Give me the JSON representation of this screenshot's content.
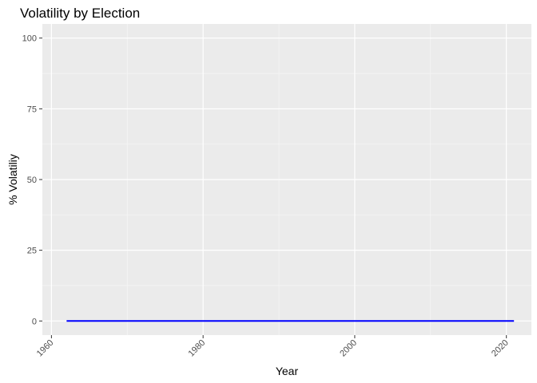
{
  "chart_data": {
    "type": "line",
    "title": "Volatility by Election",
    "xlabel": "Year",
    "ylabel": "% Volatiliy",
    "xlim": [
      1958.8,
      2023.3
    ],
    "ylim": [
      -5,
      105
    ],
    "x_ticks": [
      1960,
      1980,
      2000,
      2020
    ],
    "x_tick_labels": [
      "1960",
      "1980",
      "2000",
      "2020"
    ],
    "y_ticks": [
      0,
      25,
      50,
      75,
      100
    ],
    "y_tick_labels": [
      "0",
      "25",
      "50",
      "75",
      "100"
    ],
    "grid": true,
    "background": "#ebebeb",
    "series": [
      {
        "color": "#0000ff",
        "x": [
          1962,
          2021
        ],
        "y": [
          0,
          0
        ]
      }
    ]
  }
}
